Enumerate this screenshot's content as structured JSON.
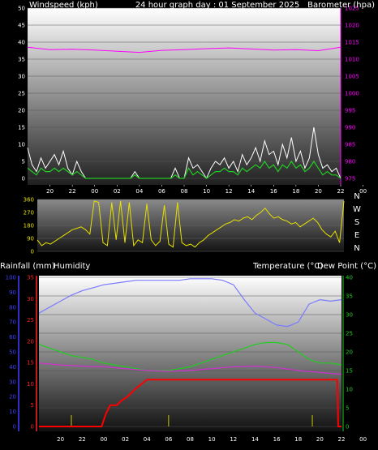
{
  "panel1": {
    "left_title": "Windspeed (kph)",
    "center_title": "24 hour graph day : 01 September 2025",
    "right_title": "Barometer (hpa)"
  },
  "panel3": {
    "left_title_1": "Rainfall (mm)",
    "left_title_2": "Humidity",
    "right_title_1": "Temperature (°C)",
    "right_title_2": "Dew Point (°C)"
  },
  "direction_labels": [
    "N",
    "W",
    "S",
    "E",
    "N"
  ],
  "colors": {
    "windspeed": "#ffffff",
    "wind_avg": "#22cc22",
    "barometer": "#ff00ff",
    "wind_dir": "#e8e000",
    "humidity": "#7a7aff",
    "temperature": "#22cc22",
    "dew_point": "#d030d0",
    "rainfall": "#ff0000",
    "rain_axis": "#ff2222",
    "humidity_axis": "#4040ff",
    "temp_axis": "#22cc22"
  },
  "chart_data": [
    {
      "type": "line",
      "title": "24 hour graph day : 01 September 2025",
      "x_ticks": [
        "20",
        "22",
        "00",
        "02",
        "04",
        "06",
        "08",
        "10",
        "12",
        "14",
        "16",
        "18",
        "20",
        "22",
        "00"
      ],
      "ylabel": "Windspeed (kph)",
      "ylim": [
        0,
        50
      ],
      "y_ticks": [
        0,
        5,
        10,
        15,
        20,
        25,
        30,
        35,
        40,
        45,
        50
      ],
      "y2label": "Barometer (hpa)",
      "y2lim": [
        975,
        1025
      ],
      "y2_ticks": [
        975,
        980,
        985,
        990,
        995,
        1000,
        1005,
        1010,
        1015,
        1020,
        1025
      ],
      "series": [
        {
          "name": "Windspeed (kph)",
          "axis": "left",
          "x": [
            0,
            0.4,
            0.8,
            1.2,
            1.6,
            2.0,
            2.4,
            2.8,
            3.2,
            3.6,
            4.0,
            4.4,
            4.8,
            5.2,
            5.6,
            6.0,
            6.4,
            6.8,
            7.2,
            7.6,
            8.0,
            8.4,
            8.8,
            9.2,
            9.6,
            10.0,
            10.4,
            10.8,
            11.2,
            11.6,
            12.0,
            12.4,
            12.8,
            13.2,
            13.6,
            14.0,
            14.4,
            14.8,
            15.2,
            15.6,
            16.0,
            16.4,
            16.8,
            17.2,
            17.6,
            18.0,
            18.4,
            18.8,
            19.2,
            19.6,
            20.0,
            20.4,
            20.8,
            21.2,
            21.6,
            22.0,
            22.4,
            22.8,
            23.2,
            23.6,
            24.0,
            24.4,
            24.8,
            25.2,
            25.6,
            26.0,
            26.4,
            26.8,
            27.2,
            27.6,
            28.0
          ],
          "values": [
            9,
            4,
            2,
            6,
            3,
            5,
            7,
            4,
            8,
            3,
            1,
            5,
            2,
            0,
            0,
            0,
            0,
            0,
            0,
            0,
            0,
            0,
            0,
            0,
            2,
            0,
            0,
            0,
            0,
            0,
            0,
            0,
            0,
            3,
            0,
            0,
            6,
            3,
            4,
            2,
            0,
            3,
            5,
            4,
            6,
            3,
            5,
            2,
            7,
            4,
            6,
            9,
            5,
            11,
            7,
            8,
            4,
            10,
            6,
            12,
            5,
            8,
            3,
            6,
            15,
            7,
            3,
            4,
            2,
            3,
            0
          ]
        },
        {
          "name": "Average windspeed (kph)",
          "axis": "left",
          "x": [
            0,
            0.4,
            0.8,
            1.2,
            1.6,
            2.0,
            2.4,
            2.8,
            3.2,
            3.6,
            4.0,
            4.4,
            4.8,
            5.2,
            5.6,
            6.0,
            6.4,
            6.8,
            7.2,
            7.6,
            8.0,
            8.4,
            8.8,
            9.2,
            9.6,
            10.0,
            10.4,
            10.8,
            11.2,
            11.6,
            12.0,
            12.4,
            12.8,
            13.2,
            13.6,
            14.0,
            14.4,
            14.8,
            15.2,
            15.6,
            16.0,
            16.4,
            16.8,
            17.2,
            17.6,
            18.0,
            18.4,
            18.8,
            19.2,
            19.6,
            20.0,
            20.4,
            20.8,
            21.2,
            21.6,
            22.0,
            22.4,
            22.8,
            23.2,
            23.6,
            24.0,
            24.4,
            24.8,
            25.2,
            25.6,
            26.0,
            26.4,
            26.8,
            27.2,
            27.6,
            28.0
          ],
          "values": [
            3,
            2,
            1,
            3,
            2,
            2,
            3,
            2,
            3,
            2,
            1,
            2,
            1,
            0,
            0,
            0,
            0,
            0,
            0,
            0,
            0,
            0,
            0,
            0,
            1,
            0,
            0,
            0,
            0,
            0,
            0,
            0,
            0,
            1,
            0,
            0,
            3,
            1,
            2,
            1,
            0,
            1,
            2,
            2,
            3,
            2,
            2,
            1,
            3,
            2,
            3,
            4,
            3,
            5,
            3,
            4,
            2,
            4,
            3,
            5,
            3,
            4,
            2,
            3,
            5,
            3,
            1,
            2,
            1,
            1,
            0
          ]
        },
        {
          "name": "Barometer (hpa)",
          "axis": "right",
          "x": [
            0,
            2,
            4,
            6,
            8,
            10,
            12,
            14,
            16,
            18,
            20,
            22,
            24,
            26,
            28
          ],
          "values": [
            1013.5,
            1012.8,
            1012.9,
            1012.7,
            1012.3,
            1012.0,
            1012.6,
            1012.8,
            1013.1,
            1013.3,
            1013.0,
            1012.7,
            1012.8,
            1012.5,
            1013.5
          ]
        }
      ]
    },
    {
      "type": "line",
      "ylabel": "Wind direction",
      "ylim": [
        0,
        360
      ],
      "y_ticks": [
        0,
        90,
        180,
        270,
        360
      ],
      "series": [
        {
          "name": "Wind direction",
          "x": [
            0,
            0.4,
            0.8,
            1.2,
            1.6,
            2.0,
            2.4,
            2.8,
            3.2,
            3.6,
            4.0,
            4.4,
            4.8,
            5.2,
            5.6,
            6.0,
            6.4,
            6.8,
            7.2,
            7.6,
            8.0,
            8.4,
            8.8,
            9.2,
            9.6,
            10.0,
            10.4,
            10.8,
            11.2,
            11.6,
            12.0,
            12.4,
            12.8,
            13.2,
            13.6,
            14.0,
            14.4,
            14.8,
            15.2,
            15.6,
            16.0,
            16.4,
            16.8,
            17.2,
            17.6,
            18.0,
            18.4,
            18.8,
            19.2,
            19.6,
            20.0,
            20.4,
            20.8,
            21.2,
            21.6,
            22.0,
            22.4,
            22.8,
            23.2,
            23.6,
            24.0,
            24.4,
            24.8,
            25.2,
            25.6,
            26.0,
            26.4,
            26.8,
            27.2,
            27.6,
            28.0
          ],
          "values": [
            80,
            40,
            60,
            50,
            70,
            90,
            110,
            130,
            150,
            160,
            170,
            150,
            120,
            350,
            340,
            60,
            40,
            340,
            80,
            350,
            60,
            340,
            40,
            80,
            60,
            330,
            80,
            40,
            70,
            320,
            50,
            30,
            340,
            60,
            40,
            50,
            30,
            60,
            80,
            110,
            130,
            150,
            170,
            190,
            200,
            220,
            210,
            230,
            240,
            220,
            250,
            270,
            300,
            260,
            230,
            240,
            220,
            210,
            190,
            200,
            170,
            190,
            210,
            230,
            200,
            150,
            120,
            100,
            140,
            60,
            350
          ]
        }
      ]
    },
    {
      "type": "line",
      "ylabel": "Rainfall (mm)",
      "ylim": [
        0,
        35
      ],
      "y_ticks": [
        0,
        5,
        10,
        15,
        20,
        25,
        30,
        35
      ],
      "y_humidity_label": "Humidity",
      "y_humidity_lim": [
        0,
        100
      ],
      "y_humidity_ticks": [
        0,
        10,
        20,
        30,
        40,
        50,
        60,
        70,
        80,
        90,
        100
      ],
      "y2label": "Temperature (°C)",
      "y2lim": [
        0,
        40
      ],
      "y2_ticks": [
        0,
        5,
        10,
        15,
        20,
        25,
        30,
        35,
        40
      ],
      "series": [
        {
          "name": "Humidity",
          "axis": "humidity",
          "x": [
            0,
            1,
            2,
            3,
            4,
            5,
            6,
            7,
            8,
            9,
            10,
            11,
            12,
            13,
            14,
            15,
            16,
            17,
            18,
            19,
            20,
            21,
            22,
            23,
            24,
            25,
            26,
            27,
            28
          ],
          "values": [
            76,
            80,
            84,
            88,
            91,
            93,
            95,
            96,
            97,
            98,
            98,
            98,
            98,
            98,
            99,
            99,
            99,
            98,
            95,
            85,
            76,
            72,
            68,
            67,
            70,
            82,
            85,
            84,
            85
          ]
        },
        {
          "name": "Temperature (°C)",
          "axis": "right",
          "x": [
            0,
            1,
            2,
            3,
            4,
            5,
            6,
            7,
            8,
            9,
            10,
            11,
            12,
            13,
            14,
            15,
            16,
            17,
            18,
            19,
            20,
            21,
            22,
            23,
            24,
            25,
            26,
            27,
            28
          ],
          "values": [
            22,
            21,
            20,
            19,
            18.5,
            18,
            17,
            16.5,
            16,
            15.5,
            15,
            15,
            15,
            15.5,
            16,
            17,
            18,
            19,
            20,
            21,
            22,
            22.5,
            22.5,
            22,
            20,
            18,
            17,
            17,
            16.5
          ]
        },
        {
          "name": "Dew Point (°C)",
          "axis": "right",
          "x": [
            0,
            2,
            4,
            6,
            8,
            10,
            12,
            14,
            16,
            18,
            20,
            22,
            24,
            26,
            28
          ],
          "values": [
            17,
            16.5,
            16.2,
            16,
            15.5,
            15,
            14.8,
            15,
            15.5,
            16,
            16.2,
            15.8,
            15,
            14.5,
            14
          ]
        },
        {
          "name": "Rainfall (mm)",
          "axis": "left",
          "x": [
            0,
            2,
            4,
            5.5,
            5.8,
            6.2,
            6.6,
            7.2,
            7.6,
            8.2,
            9.0,
            10.0,
            12,
            16,
            20,
            24,
            27.6,
            27.7,
            28
          ],
          "values": [
            0,
            0,
            0,
            0,
            0,
            3,
            5,
            5,
            6,
            7,
            9,
            11,
            11,
            11,
            11,
            11,
            11,
            0,
            0
          ]
        }
      ]
    }
  ]
}
